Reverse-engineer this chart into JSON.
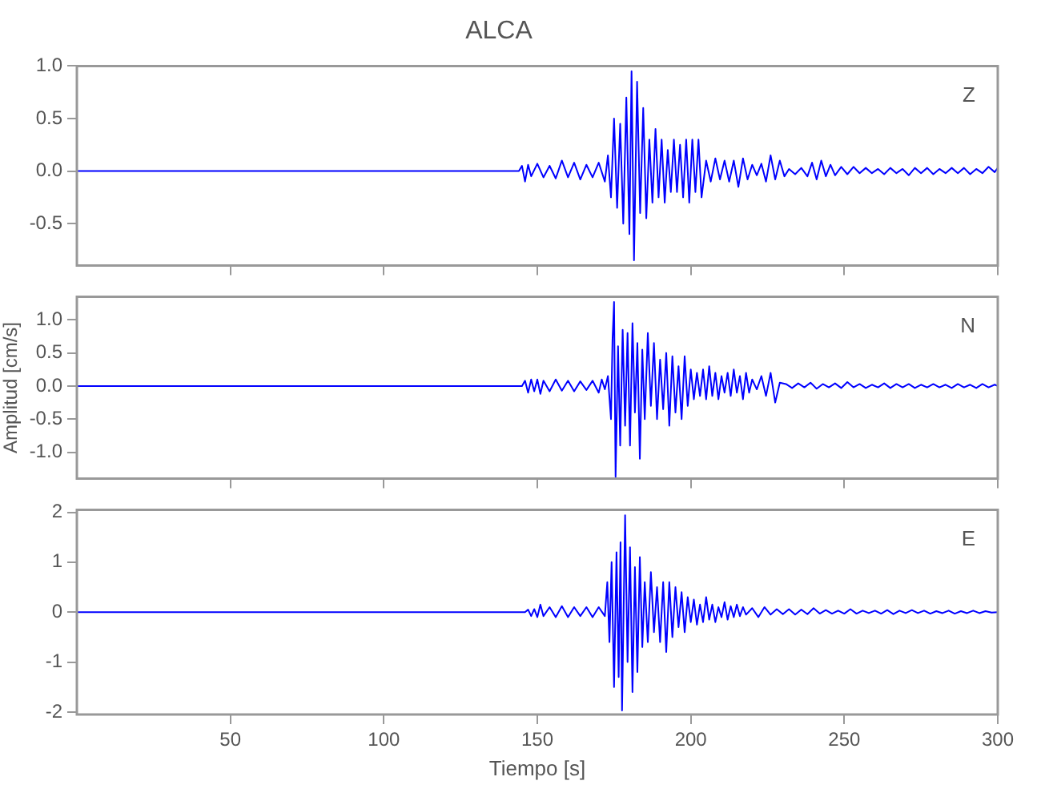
{
  "chart_data": [
    {
      "type": "line",
      "title": "ALCA",
      "annotations": [
        "Z"
      ],
      "marker": "none",
      "tick_labels": "y",
      "xlim": [
        0,
        300
      ],
      "xticks": [
        50,
        100,
        150,
        200,
        250,
        300
      ],
      "ylim": [
        -0.9,
        1.0
      ],
      "yticks": [
        {
          "value": -0.5,
          "label": "-0.5"
        },
        {
          "value": 0,
          "label": "0.0"
        },
        {
          "value": 0.5,
          "label": "0.5"
        },
        {
          "value": 1,
          "label": "1.0"
        }
      ],
      "series": [
        {
          "color": "#0000ff",
          "x": [
            0,
            144,
            145,
            146,
            147,
            148,
            150,
            152,
            154,
            156,
            158,
            160,
            162,
            164,
            166,
            168,
            170,
            172,
            173,
            174,
            175,
            176,
            177,
            178,
            179,
            180,
            180.7,
            181.5,
            182.5,
            183.5,
            184.5,
            185.5,
            186.5,
            187.5,
            188.5,
            189.5,
            190.5,
            191.5,
            192.5,
            193.5,
            194.5,
            195.5,
            196.5,
            197.5,
            198.5,
            199.5,
            200.5,
            201.5,
            202.5,
            203.5,
            205,
            206.5,
            208,
            209.5,
            211,
            212.5,
            214,
            215.5,
            217,
            218.5,
            220,
            221.5,
            223,
            224.5,
            226,
            227.5,
            229,
            230.5,
            232,
            234,
            236,
            238,
            239.5,
            241,
            242.5,
            244,
            245.5,
            247,
            249,
            251,
            253,
            255,
            257,
            259,
            261,
            263,
            265,
            267,
            269,
            271,
            273,
            275,
            277,
            279,
            281,
            283,
            285,
            287,
            289,
            291,
            293,
            295,
            297,
            299,
            300
          ],
          "values": [
            0,
            0,
            0.05,
            -0.1,
            0.06,
            -0.05,
            0.07,
            -0.06,
            0.05,
            -0.07,
            0.1,
            -0.06,
            0.08,
            -0.08,
            0.06,
            -0.06,
            0.08,
            -0.1,
            0.15,
            -0.25,
            0.5,
            -0.35,
            0.45,
            -0.5,
            0.7,
            -0.6,
            0.95,
            -0.85,
            0.85,
            -0.4,
            0.6,
            -0.45,
            0.3,
            -0.3,
            0.4,
            -0.25,
            0.3,
            -0.3,
            0.2,
            -0.2,
            0.3,
            -0.2,
            0.25,
            -0.25,
            0.3,
            -0.3,
            0.3,
            -0.2,
            0.3,
            -0.25,
            0.1,
            -0.1,
            0.12,
            -0.08,
            0.1,
            -0.1,
            0.1,
            -0.15,
            0.12,
            -0.08,
            0.06,
            -0.04,
            0.07,
            -0.1,
            0.15,
            -0.08,
            0.1,
            -0.05,
            0.02,
            -0.03,
            0.03,
            -0.05,
            0.08,
            -0.08,
            0.1,
            -0.05,
            0.06,
            -0.04,
            0.04,
            -0.03,
            0.04,
            -0.02,
            0.03,
            -0.02,
            0.02,
            -0.03,
            0.03,
            -0.02,
            0.02,
            -0.04,
            0.03,
            -0.02,
            0.03,
            -0.03,
            0.02,
            -0.02,
            0.03,
            -0.02,
            0.03,
            -0.03,
            0.02,
            -0.02,
            0.04,
            -0.01,
            0.03
          ]
        }
      ]
    },
    {
      "type": "line",
      "ylabel": "Amplitud [cm/s]",
      "annotations": [
        "N"
      ],
      "marker": "none",
      "tick_labels": "y",
      "xlim": [
        0,
        300
      ],
      "xticks": [
        50,
        100,
        150,
        200,
        250,
        300
      ],
      "ylim": [
        -1.4,
        1.35
      ],
      "yticks": [
        {
          "value": -1,
          "label": "-1.0"
        },
        {
          "value": -0.5,
          "label": "-0.5"
        },
        {
          "value": 0,
          "label": "0.0"
        },
        {
          "value": 0.5,
          "label": "0.5"
        },
        {
          "value": 1,
          "label": "1.0"
        }
      ],
      "series": [
        {
          "color": "#0000ff",
          "x": [
            0,
            145,
            146,
            147,
            148,
            149,
            150,
            151,
            152,
            154,
            156,
            158,
            160,
            162,
            164,
            166,
            168,
            170,
            171,
            172,
            173,
            174,
            174.5,
            175,
            175.5,
            176.3,
            177,
            177.8,
            178.6,
            179.4,
            180.2,
            181,
            181.8,
            182.6,
            183.4,
            184.2,
            185,
            186,
            187,
            188,
            189,
            190,
            191,
            192,
            193,
            194,
            195,
            196,
            197,
            198,
            199,
            200,
            201,
            202,
            203,
            204,
            205,
            206,
            207,
            208,
            209,
            210,
            211,
            212,
            213,
            214,
            215,
            216,
            217,
            218,
            219,
            220,
            221.5,
            223,
            224.5,
            226,
            227.5,
            229,
            231,
            233,
            235,
            237,
            239,
            241,
            243,
            245,
            247,
            249,
            251,
            253,
            255,
            257,
            259,
            261,
            263,
            265,
            267,
            269,
            271,
            273,
            275,
            277,
            279,
            281,
            283,
            285,
            287,
            289,
            291,
            293,
            295,
            297,
            299,
            300
          ],
          "values": [
            0,
            0,
            0.08,
            -0.1,
            0.1,
            -0.08,
            0.1,
            -0.12,
            0.08,
            -0.08,
            0.1,
            -0.07,
            0.08,
            -0.08,
            0.07,
            -0.06,
            0.08,
            -0.1,
            0.1,
            -0.05,
            0.15,
            -0.5,
            0.7,
            1.27,
            -1.37,
            0.6,
            -0.9,
            0.85,
            -0.6,
            0.8,
            -0.9,
            0.95,
            -0.4,
            0.65,
            -1.1,
            0.55,
            -0.5,
            0.8,
            -0.3,
            0.65,
            -0.5,
            0.4,
            -0.35,
            0.5,
            -0.6,
            0.45,
            -0.4,
            0.3,
            -0.5,
            0.45,
            -0.3,
            0.25,
            -0.2,
            0.2,
            -0.15,
            0.25,
            -0.2,
            0.3,
            -0.15,
            0.2,
            -0.2,
            0.15,
            -0.1,
            0.2,
            -0.15,
            0.25,
            -0.1,
            0.15,
            -0.2,
            0.2,
            -0.1,
            0.1,
            -0.05,
            0.15,
            -0.15,
            0.2,
            -0.25,
            0.05,
            0.03,
            -0.03,
            0.04,
            -0.02,
            0.05,
            -0.04,
            0.03,
            -0.02,
            0.04,
            -0.03,
            0.06,
            -0.02,
            0.03,
            -0.03,
            0.02,
            -0.02,
            0.04,
            -0.03,
            0.03,
            -0.02,
            0.03,
            -0.03,
            0.02,
            -0.02,
            0.03,
            -0.02,
            0.02,
            -0.03,
            0.03,
            -0.02,
            0.02,
            -0.03,
            0.03,
            -0.02,
            0.02,
            0
          ]
        }
      ]
    },
    {
      "type": "line",
      "xlabel": "Tiempo [s]",
      "annotations": [
        "E"
      ],
      "marker": "none",
      "xlim": [
        0,
        300
      ],
      "xticks": [
        50,
        100,
        150,
        200,
        250,
        300
      ],
      "ylim": [
        -2.05,
        2.05
      ],
      "yticks": [
        -2,
        -1,
        0,
        1,
        2
      ],
      "series": [
        {
          "color": "#0000ff",
          "x": [
            0,
            146,
            147,
            148,
            149,
            150,
            151,
            152,
            154,
            156,
            158,
            160,
            162,
            164,
            166,
            168,
            170,
            172,
            172.8,
            173.5,
            174.2,
            175,
            175.8,
            176.5,
            177.1,
            177.6,
            178.6,
            179.4,
            180.2,
            181,
            181.8,
            182.6,
            183.4,
            184.2,
            185,
            186,
            187,
            188,
            189,
            190,
            191,
            192,
            193,
            194,
            195,
            196,
            197,
            198,
            199,
            200,
            201,
            202,
            203,
            204,
            205,
            206,
            207,
            208,
            209,
            210,
            211,
            212,
            213,
            214,
            215,
            216,
            217,
            218,
            220,
            222,
            224,
            226,
            228,
            230,
            232,
            234,
            236,
            238,
            240,
            242,
            244,
            246,
            248,
            250,
            252,
            254,
            256,
            258,
            260,
            262,
            264,
            266,
            268,
            270,
            272,
            274,
            276,
            278,
            280,
            282,
            284,
            286,
            288,
            290,
            292,
            294,
            296,
            298,
            300
          ],
          "values": [
            0,
            0,
            0.05,
            -0.08,
            0.06,
            -0.1,
            0.15,
            -0.08,
            0.1,
            -0.1,
            0.12,
            -0.1,
            0.1,
            -0.08,
            0.1,
            -0.1,
            0.1,
            -0.08,
            0.6,
            -0.6,
            1.0,
            -1.5,
            1.2,
            -1.3,
            1.4,
            -1.97,
            1.94,
            -1.0,
            1.3,
            -1.6,
            0.9,
            -1.2,
            1.1,
            -0.7,
            0.6,
            -0.6,
            0.8,
            -0.4,
            0.5,
            -0.6,
            0.6,
            -0.8,
            0.6,
            -0.5,
            0.5,
            -0.3,
            0.4,
            -0.4,
            0.3,
            -0.2,
            0.25,
            -0.25,
            0.15,
            -0.2,
            0.3,
            -0.15,
            0.15,
            -0.2,
            0.1,
            -0.1,
            0.2,
            -0.15,
            0.12,
            -0.1,
            0.15,
            -0.08,
            0.1,
            -0.05,
            0.08,
            -0.1,
            0.1,
            -0.05,
            0.06,
            -0.04,
            0.06,
            -0.05,
            0.05,
            -0.04,
            0.08,
            -0.03,
            0.04,
            -0.03,
            0.03,
            -0.03,
            0.06,
            -0.03,
            0.03,
            -0.02,
            0.03,
            -0.03,
            0.04,
            -0.04,
            0.03,
            -0.02,
            0.04,
            -0.02,
            0.03,
            -0.03,
            0.02,
            -0.02,
            0.03,
            -0.03,
            0.02,
            -0.02,
            0.03,
            -0.02,
            0.02,
            -0.01,
            0
          ]
        }
      ]
    }
  ]
}
